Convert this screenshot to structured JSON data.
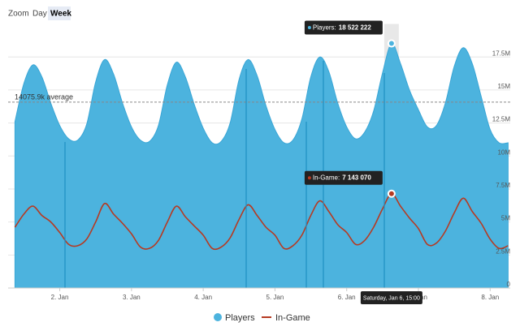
{
  "chart_data": {
    "type": "area-line",
    "zoom": {
      "label": "Zoom",
      "options": [
        "Day",
        "Week"
      ],
      "selected": "Week"
    },
    "x": [
      1.375,
      1.5,
      1.625,
      1.75,
      1.875,
      2,
      2.125,
      2.25,
      2.375,
      2.5,
      2.625,
      2.75,
      2.875,
      3,
      3.125,
      3.25,
      3.375,
      3.5,
      3.625,
      3.75,
      3.875,
      4,
      4.125,
      4.25,
      4.375,
      4.5,
      4.625,
      4.75,
      4.875,
      5,
      5.125,
      5.25,
      5.375,
      5.5,
      5.625,
      5.75,
      5.875,
      6,
      6.125,
      6.25,
      6.375,
      6.5,
      6.625,
      6.75,
      6.875,
      7,
      7.125,
      7.25,
      7.375,
      7.5,
      7.625,
      7.75,
      7.875,
      8,
      8.125,
      8.25
    ],
    "xlim": [
      1.28,
      8.28
    ],
    "xticks": [
      {
        "value": 2,
        "label": "2. Jan"
      },
      {
        "value": 3,
        "label": "3. Jan"
      },
      {
        "value": 4,
        "label": "4. Jan"
      },
      {
        "value": 5,
        "label": "5. Jan"
      },
      {
        "value": 6,
        "label": "6. Jan"
      },
      {
        "value": 7,
        "label": "7. Jan"
      },
      {
        "value": 8,
        "label": "8. Jan"
      }
    ],
    "ylim": [
      0,
      20000000
    ],
    "yticks": [
      0,
      {
        "value": 2500000,
        "label": "2.5M"
      },
      {
        "value": 5000000,
        "label": "5M"
      },
      {
        "value": 7500000,
        "label": "7.5M"
      },
      {
        "value": 10000000,
        "label": "10M"
      },
      {
        "value": 12500000,
        "label": "12.5M"
      },
      {
        "value": 15000000,
        "label": "15M"
      },
      {
        "value": 17500000,
        "label": "17.5M"
      }
    ],
    "grid": true,
    "average": {
      "value": 14075900,
      "label": "14075.9k average"
    },
    "series": [
      {
        "name": "Players",
        "kind": "area",
        "color": "#4cb3de",
        "values": [
          12600000,
          15500000,
          16900000,
          16000000,
          14000000,
          12300000,
          11300000,
          11200000,
          12400000,
          15600000,
          17300000,
          16200000,
          14000000,
          12200000,
          11200000,
          11100000,
          12300000,
          15400000,
          17100000,
          16000000,
          13900000,
          12100000,
          11000000,
          11100000,
          12500000,
          15800000,
          17300000,
          16100000,
          13800000,
          12000000,
          11000000,
          11200000,
          12800000,
          16000000,
          17500000,
          16400000,
          14000000,
          12200000,
          11300000,
          11800000,
          13400000,
          16300000,
          18522222,
          17000000,
          15000000,
          13500000,
          12200000,
          12300000,
          14000000,
          16800000,
          18200000,
          17000000,
          14500000,
          12000000,
          11000000,
          11000000
        ]
      },
      {
        "name": "In-Game",
        "kind": "line",
        "color": "#b63a22",
        "values": [
          4600000,
          5600000,
          6200000,
          5500000,
          5000000,
          4200000,
          3300000,
          3200000,
          3700000,
          5000000,
          6400000,
          5600000,
          4900000,
          4100000,
          3100000,
          3000000,
          3600000,
          5000000,
          6200000,
          5400000,
          4700000,
          4000000,
          3000000,
          3100000,
          3800000,
          5200000,
          6300000,
          5500000,
          4600000,
          4000000,
          3000000,
          3200000,
          4000000,
          5500000,
          6600000,
          5800000,
          4800000,
          4200000,
          3300000,
          3600000,
          4600000,
          6000000,
          7143070,
          6200000,
          5300000,
          4500000,
          3300000,
          3400000,
          4300000,
          5700000,
          6800000,
          5800000,
          4900000,
          3700000,
          3000000,
          3200000
        ]
      }
    ],
    "tooltip": {
      "x_label": "Saturday, Jan 6, 15:00",
      "items": [
        {
          "label": "Players:",
          "value": {
            "value": 18522222,
            "label": "18 522 222"
          }
        },
        {
          "label": "In-Game:",
          "value": {
            "value": 7143070,
            "label": "7 143 070"
          }
        }
      ]
    },
    "legend": "bottom"
  }
}
